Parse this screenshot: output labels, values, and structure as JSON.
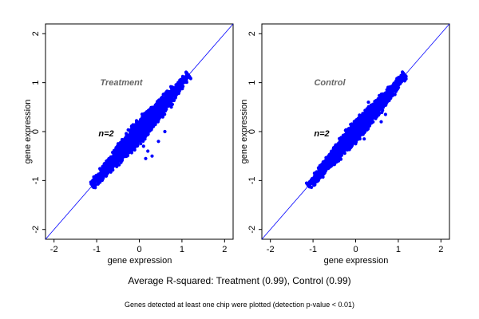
{
  "figure": {
    "summary": "Average R-squared: Treatment (0.99), Control (0.99)",
    "footnote": "Genes detected at least one chip were plotted (detection p-value < 0.01)"
  },
  "chart_data": [
    {
      "type": "scatter",
      "panel_label": "Treatment",
      "annotation": "n=2",
      "xlabel": "gene expression",
      "ylabel": "gene expression",
      "xlim": [
        -2.2,
        2.2
      ],
      "ylim": [
        -2.2,
        2.2
      ],
      "xticks": [
        -2,
        -1,
        0,
        1,
        2
      ],
      "yticks": [
        -2,
        -1,
        0,
        1,
        2
      ],
      "reference_line": "y = x",
      "point_color": "#0000ff",
      "line_color": "#0000ff",
      "cloud": {
        "x_range": [
          -1.1,
          1.15
        ],
        "spread": 0.1,
        "n_points": 3000
      },
      "outliers": [
        [
          0.1,
          -0.3
        ],
        [
          0.2,
          -0.4
        ],
        [
          0.3,
          -0.5
        ],
        [
          0.45,
          -0.2
        ],
        [
          0.6,
          0.0
        ],
        [
          0.75,
          0.5
        ],
        [
          0.8,
          0.75
        ],
        [
          -0.5,
          -0.4
        ],
        [
          0.15,
          -0.55
        ],
        [
          0.55,
          0.3
        ]
      ]
    },
    {
      "type": "scatter",
      "panel_label": "Control",
      "annotation": "n=2",
      "xlabel": "gene expression",
      "ylabel": "gene expression",
      "xlim": [
        -2.2,
        2.2
      ],
      "ylim": [
        -2.2,
        2.2
      ],
      "xticks": [
        -2,
        -1,
        0,
        1,
        2
      ],
      "yticks": [
        -2,
        -1,
        0,
        1,
        2
      ],
      "reference_line": "y = x",
      "point_color": "#0000ff",
      "line_color": "#0000ff",
      "cloud": {
        "x_range": [
          -1.1,
          1.15
        ],
        "spread": 0.09,
        "n_points": 3000
      },
      "outliers": [
        [
          0.0,
          -0.25
        ],
        [
          0.6,
          0.2
        ],
        [
          0.7,
          0.35
        ],
        [
          0.3,
          0.6
        ],
        [
          -0.4,
          -0.6
        ],
        [
          0.5,
          0.55
        ],
        [
          0.2,
          -0.15
        ]
      ]
    }
  ]
}
